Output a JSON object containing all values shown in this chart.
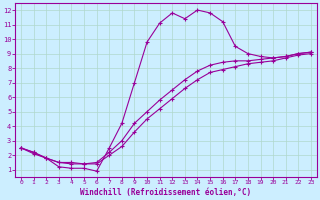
{
  "xlabel": "Windchill (Refroidissement éolien,°C)",
  "background_color": "#cceeff",
  "line_color": "#990099",
  "xlim": [
    -0.5,
    23.5
  ],
  "ylim": [
    0.5,
    12.5
  ],
  "xticks": [
    0,
    1,
    2,
    3,
    4,
    5,
    6,
    7,
    8,
    9,
    10,
    11,
    12,
    13,
    14,
    15,
    16,
    17,
    18,
    19,
    20,
    21,
    22,
    23
  ],
  "yticks": [
    1,
    2,
    3,
    4,
    5,
    6,
    7,
    8,
    9,
    10,
    11,
    12
  ],
  "grid_color": "#aaddcc",
  "line1_x": [
    0,
    1,
    2,
    3,
    4,
    5,
    6,
    7,
    8,
    9,
    10,
    11,
    12,
    13,
    14,
    15,
    16,
    17,
    18,
    19,
    20,
    21,
    22,
    23
  ],
  "line1_y": [
    2.5,
    2.2,
    1.8,
    1.2,
    1.1,
    1.1,
    0.9,
    2.5,
    4.2,
    7.0,
    9.8,
    11.1,
    11.8,
    11.4,
    12.0,
    11.8,
    11.2,
    9.5,
    9.0,
    8.8,
    8.7,
    8.8,
    9.0,
    9.1
  ],
  "line2_x": [
    0,
    1,
    2,
    3,
    4,
    5,
    6,
    7,
    8,
    9,
    10,
    11,
    12,
    13,
    14,
    15,
    16,
    17,
    18,
    19,
    20,
    21,
    22,
    23
  ],
  "line2_y": [
    2.5,
    2.2,
    1.8,
    1.5,
    1.5,
    1.4,
    1.5,
    2.2,
    3.0,
    4.2,
    5.0,
    5.8,
    6.5,
    7.2,
    7.8,
    8.2,
    8.4,
    8.5,
    8.5,
    8.6,
    8.7,
    8.8,
    9.0,
    9.1
  ],
  "line3_x": [
    0,
    1,
    2,
    3,
    4,
    5,
    6,
    7,
    8,
    9,
    10,
    11,
    12,
    13,
    14,
    15,
    16,
    17,
    18,
    19,
    20,
    21,
    22,
    23
  ],
  "line3_y": [
    2.5,
    2.1,
    1.8,
    1.5,
    1.4,
    1.4,
    1.4,
    2.0,
    2.6,
    3.6,
    4.5,
    5.2,
    5.9,
    6.6,
    7.2,
    7.7,
    7.9,
    8.1,
    8.3,
    8.4,
    8.5,
    8.7,
    8.9,
    9.0
  ]
}
